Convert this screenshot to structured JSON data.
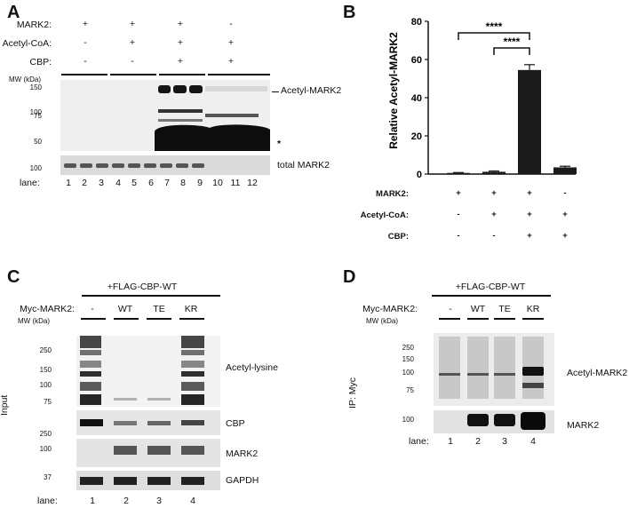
{
  "panels": {
    "a": "A",
    "b": "B",
    "c": "C",
    "d": "D"
  },
  "panel_a": {
    "rows": [
      {
        "label": "MARK2:",
        "signs": [
          "+",
          "+",
          "+",
          "-"
        ]
      },
      {
        "label": "Acetyl-CoA:",
        "signs": [
          "-",
          "+",
          "+",
          "+"
        ]
      },
      {
        "label": "CBP:",
        "signs": [
          "-",
          "-",
          "+",
          "+"
        ]
      }
    ],
    "mw_label": "MW (kDa)",
    "mw_main": [
      "150",
      "100",
      "75",
      "50"
    ],
    "mw_lower": [
      "100"
    ],
    "band_label": "Acetyl-MARK2",
    "asterisk": "*",
    "total_label": "total MARK2",
    "lane_label": "lane:",
    "lanes": [
      "1",
      "2",
      "3",
      "4",
      "5",
      "6",
      "7",
      "8",
      "9",
      "10",
      "11",
      "12"
    ]
  },
  "panel_c": {
    "header": "+FLAG-CBP-WT",
    "row_label": "Myc-MARK2:",
    "conditions": [
      "-",
      "WT",
      "TE",
      "KR"
    ],
    "mw_label": "MW (kDa)",
    "mw_top": [
      "250",
      "150",
      "100",
      "75"
    ],
    "mw_cbp": [
      "250"
    ],
    "mw_mark2": [
      "100"
    ],
    "mw_gapdh": [
      "37"
    ],
    "labels": [
      "Acetyl-lysine",
      "CBP",
      "MARK2",
      "GAPDH"
    ],
    "side_label": "Input",
    "lane_label": "lane:",
    "lanes": [
      "1",
      "2",
      "3",
      "4"
    ]
  },
  "panel_d": {
    "header": "+FLAG-CBP-WT",
    "row_label": "Myc-MARK2:",
    "conditions": [
      "-",
      "WT",
      "TE",
      "KR"
    ],
    "mw_label": "MW (kDa)",
    "mw_top": [
      "250",
      "150",
      "100",
      "75"
    ],
    "mw_bottom": [
      "100"
    ],
    "labels": [
      "Acetyl-MARK2",
      "MARK2"
    ],
    "side_label": "IP: Myc",
    "lane_label": "lane:",
    "lanes": [
      "1",
      "2",
      "3",
      "4"
    ]
  },
  "panel_b": {
    "significance": [
      "****",
      "****"
    ],
    "row_labels": [
      "MARK2:",
      "Acetyl-CoA:",
      "CBP:"
    ],
    "row_signs": [
      [
        "+",
        "+",
        "+",
        "-"
      ],
      [
        "-",
        "+",
        "+",
        "+"
      ],
      [
        "-",
        "-",
        "+",
        "+"
      ]
    ]
  },
  "chart_data": {
    "type": "bar",
    "ylabel": "Relative Acetyl-MARK2",
    "ylim": [
      0,
      80
    ],
    "yticks": [
      0,
      20,
      40,
      60,
      80
    ],
    "values": [
      0.6,
      1.2,
      54.5,
      3.5
    ],
    "errors": [
      0.2,
      0.4,
      2.8,
      0.6
    ],
    "colors": [
      "#1a1a1a",
      "#1a1a1a",
      "#1a1a1a",
      "#1a1a1a"
    ]
  }
}
